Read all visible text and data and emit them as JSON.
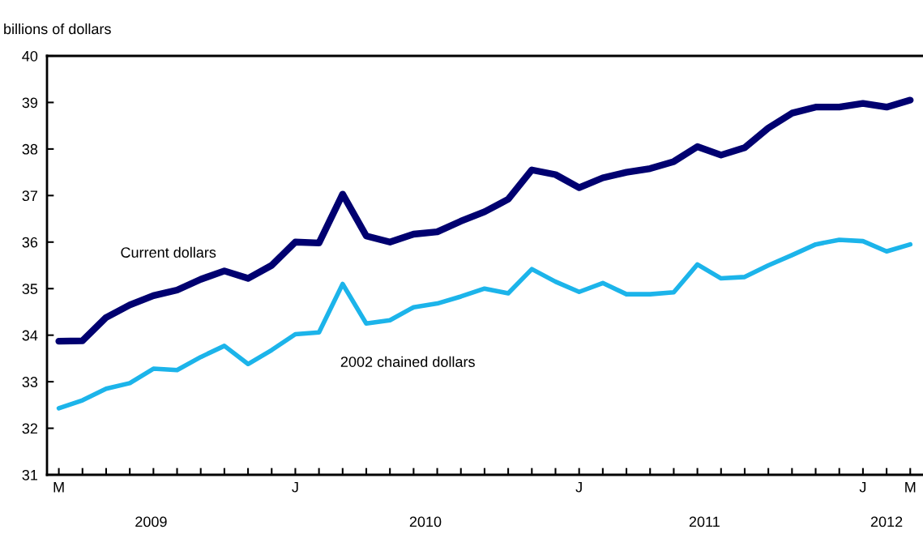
{
  "chart_data": {
    "type": "line",
    "ylabel": "billions of dollars",
    "categories": [
      "M",
      null,
      null,
      null,
      null,
      null,
      null,
      null,
      null,
      null,
      "J",
      null,
      null,
      null,
      null,
      null,
      null,
      null,
      null,
      null,
      null,
      null,
      "J",
      null,
      null,
      null,
      null,
      null,
      null,
      null,
      null,
      null,
      null,
      null,
      "J",
      null,
      "M"
    ],
    "series": [
      {
        "name": "Current dollars",
        "color": "#000070",
        "values": [
          33.87,
          33.88,
          34.38,
          34.65,
          34.85,
          34.97,
          35.2,
          35.38,
          35.22,
          35.5,
          36.0,
          35.98,
          37.03,
          36.13,
          36.0,
          36.17,
          36.22,
          36.45,
          36.65,
          36.92,
          37.55,
          37.45,
          37.17,
          37.38,
          37.5,
          37.58,
          37.73,
          38.05,
          37.87,
          38.03,
          38.45,
          38.77,
          38.9,
          38.9,
          38.98,
          38.9,
          39.05
        ]
      },
      {
        "name": "2002 chained dollars",
        "color": "#1cb4ea",
        "values": [
          32.43,
          32.6,
          32.85,
          32.97,
          33.28,
          33.25,
          33.53,
          33.77,
          33.38,
          33.68,
          34.02,
          34.06,
          35.1,
          34.25,
          34.32,
          34.6,
          34.68,
          34.83,
          35.0,
          34.9,
          35.42,
          35.15,
          34.93,
          35.12,
          34.88,
          34.88,
          34.92,
          35.52,
          35.22,
          35.25,
          35.5,
          35.72,
          35.95,
          36.05,
          36.02,
          35.8,
          35.95
        ]
      }
    ],
    "annotations": [
      "2009",
      "2010",
      "2011",
      "2012"
    ],
    "ylim": [
      31,
      40
    ],
    "yticks": [
      31,
      32,
      33,
      34,
      35,
      36,
      37,
      38,
      39,
      40
    ],
    "grid": false,
    "legend": false,
    "marker": "none",
    "line_style": "solid"
  }
}
